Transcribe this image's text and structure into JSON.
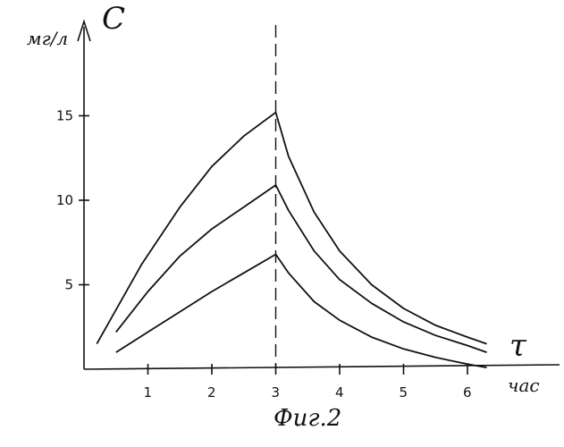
{
  "chart_data": {
    "type": "line",
    "ylabel_symbol": "C",
    "y_unit": "мг/л",
    "xlabel_symbol": "τ",
    "x_unit": "час",
    "caption": "Фиг.2",
    "xlim": [
      0,
      6.8
    ],
    "ylim": [
      0,
      18
    ],
    "x_ticks": [
      1,
      2,
      3,
      4,
      5,
      6
    ],
    "y_ticks": [
      5,
      10,
      15
    ],
    "vertical_marker_x": 3,
    "grid": false,
    "series": [
      {
        "points": [
          [
            0.2,
            1.5
          ],
          [
            0.9,
            6.2
          ],
          [
            1.5,
            9.6
          ],
          [
            2.0,
            12.0
          ],
          [
            2.5,
            13.8
          ],
          [
            3.0,
            15.2
          ],
          [
            3.2,
            12.6
          ],
          [
            3.6,
            9.3
          ],
          [
            4.0,
            7.0
          ],
          [
            4.5,
            5.0
          ],
          [
            5.0,
            3.6
          ],
          [
            5.5,
            2.6
          ],
          [
            6.0,
            1.9
          ],
          [
            6.3,
            1.5
          ]
        ]
      },
      {
        "points": [
          [
            0.5,
            2.2
          ],
          [
            1.0,
            4.6
          ],
          [
            1.5,
            6.7
          ],
          [
            2.0,
            8.3
          ],
          [
            2.5,
            9.6
          ],
          [
            3.0,
            10.9
          ],
          [
            3.2,
            9.4
          ],
          [
            3.6,
            7.0
          ],
          [
            4.0,
            5.3
          ],
          [
            4.5,
            3.9
          ],
          [
            5.0,
            2.8
          ],
          [
            5.5,
            2.0
          ],
          [
            6.0,
            1.4
          ],
          [
            6.3,
            1.0
          ]
        ]
      },
      {
        "points": [
          [
            0.5,
            1.0
          ],
          [
            1.0,
            2.2
          ],
          [
            1.5,
            3.4
          ],
          [
            2.0,
            4.6
          ],
          [
            2.5,
            5.7
          ],
          [
            3.0,
            6.8
          ],
          [
            3.2,
            5.7
          ],
          [
            3.6,
            4.0
          ],
          [
            4.0,
            2.9
          ],
          [
            4.5,
            1.9
          ],
          [
            5.0,
            1.2
          ],
          [
            5.5,
            0.7
          ],
          [
            6.0,
            0.3
          ],
          [
            6.3,
            0.1
          ]
        ]
      }
    ]
  }
}
